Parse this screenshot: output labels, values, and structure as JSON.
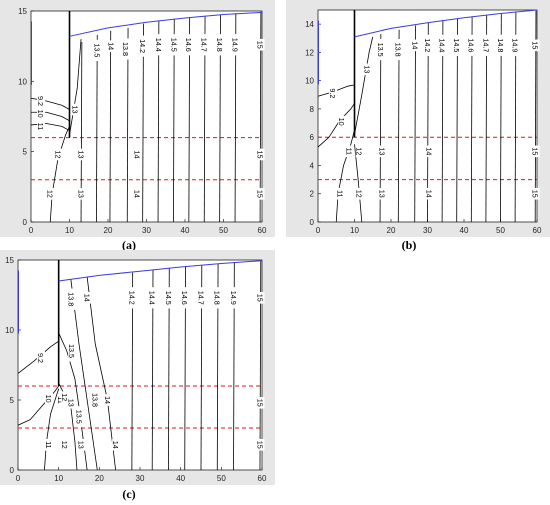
{
  "panel_labels": {
    "a": "(a)",
    "b": "(b)",
    "c": "(c)"
  },
  "colors": {
    "contour": "#000000",
    "surface": "#3b3bdf",
    "dashed": "#e01818",
    "background": "#e6e6e6",
    "plot": "#ffffff"
  },
  "chart_data": [
    {
      "type": "contour",
      "panel": "a",
      "xlim": [
        0,
        60
      ],
      "ylim": [
        0,
        15
      ],
      "xticks": [
        0,
        10,
        20,
        30,
        40,
        50,
        60
      ],
      "yticks": [
        0,
        5,
        10,
        15
      ],
      "wall_x": 10,
      "dashed_y": [
        6,
        3
      ],
      "surface": {
        "x": [
          10,
          20,
          30,
          40,
          50,
          60
        ],
        "y": [
          13.2,
          13.8,
          14.2,
          14.5,
          14.75,
          14.9
        ]
      },
      "contours": [
        {
          "label": "13.5",
          "x": 17,
          "y": [
            0,
            13.3
          ]
        },
        {
          "label": "13.8",
          "x": 25,
          "y": [
            0,
            13.8
          ]
        },
        {
          "label": "14",
          "x": 20.5,
          "y": [
            0,
            13.6
          ]
        },
        {
          "label": "14.2",
          "x": 29,
          "y": [
            0,
            14.1
          ]
        },
        {
          "label": "14.4",
          "x": 33,
          "y": [
            0,
            14.3
          ]
        },
        {
          "label": "14.5",
          "x": 37,
          "y": [
            0,
            14.45
          ]
        },
        {
          "label": "14.6",
          "x": 41,
          "y": [
            0,
            14.55
          ]
        },
        {
          "label": "14.7",
          "x": 45,
          "y": [
            0,
            14.65
          ]
        },
        {
          "label": "14.8",
          "x": 49,
          "y": [
            0,
            14.75
          ]
        },
        {
          "label": "14.9",
          "x": 53,
          "y": [
            0,
            14.85
          ]
        },
        {
          "label": "15",
          "x": 59.5,
          "y": [
            0,
            14.95
          ]
        },
        {
          "label": "13",
          "x": 13,
          "y": [
            0,
            12.8
          ]
        }
      ],
      "left_contours": [
        {
          "label": "9.2",
          "points": [
            [
              0,
              8.8
            ],
            [
              4,
              8.6
            ],
            [
              8,
              8.3
            ],
            [
              10,
              8.0
            ]
          ]
        },
        {
          "label": "10",
          "points": [
            [
              0,
              7.8
            ],
            [
              4,
              7.8
            ],
            [
              8,
              7.5
            ],
            [
              10,
              7.2
            ]
          ]
        },
        {
          "label": "11",
          "points": [
            [
              0,
              6.9
            ],
            [
              4,
              7.0
            ],
            [
              8,
              6.8
            ],
            [
              10,
              6.5
            ]
          ]
        },
        {
          "label": "12",
          "points": [
            [
              5,
              0
            ],
            [
              5.5,
              2
            ],
            [
              7,
              4.5
            ],
            [
              9,
              6.2
            ],
            [
              10,
              6.8
            ]
          ]
        },
        {
          "label": "13",
          "points": [
            [
              10,
              6.2
            ],
            [
              12,
              9.5
            ],
            [
              13,
              13.0
            ]
          ]
        }
      ],
      "value_labels": [
        {
          "text": "13.5",
          "x": 17.2,
          "y": 12.2
        },
        {
          "text": "13.8",
          "x": 24.6,
          "y": 12.3
        },
        {
          "text": "14",
          "x": 20.8,
          "y": 12.5
        },
        {
          "text": "14.2",
          "x": 29,
          "y": 12.5
        },
        {
          "text": "14.4",
          "x": 33.2,
          "y": 12.6
        },
        {
          "text": "14.5",
          "x": 37.2,
          "y": 12.6
        },
        {
          "text": "14.6",
          "x": 41,
          "y": 12.6
        },
        {
          "text": "14.7",
          "x": 45,
          "y": 12.6
        },
        {
          "text": "14.8",
          "x": 49,
          "y": 12.6
        },
        {
          "text": "14.9",
          "x": 53,
          "y": 12.6
        },
        {
          "text": "15",
          "x": 59.5,
          "y": 12.6
        },
        {
          "text": "9.2",
          "x": 2.5,
          "y": 8.6
        },
        {
          "text": "10",
          "x": 2.5,
          "y": 7.7
        },
        {
          "text": "11",
          "x": 2.5,
          "y": 6.8
        },
        {
          "text": "13",
          "x": 11.5,
          "y": 8.0
        },
        {
          "text": "12",
          "x": 7,
          "y": 4.8
        },
        {
          "text": "13",
          "x": 13,
          "y": 4.8
        },
        {
          "text": "14",
          "x": 27.5,
          "y": 4.8
        },
        {
          "text": "15",
          "x": 59.5,
          "y": 4.8
        },
        {
          "text": "12",
          "x": 5,
          "y": 2.0
        },
        {
          "text": "13",
          "x": 13,
          "y": 2.0
        },
        {
          "text": "14",
          "x": 27.5,
          "y": 2.0
        },
        {
          "text": "15",
          "x": 59.5,
          "y": 2.0
        }
      ]
    },
    {
      "type": "contour",
      "panel": "b",
      "xlim": [
        0,
        60
      ],
      "ylim": [
        0,
        15
      ],
      "xticks": [
        0,
        10,
        20,
        30,
        40,
        50,
        60
      ],
      "yticks": [
        0,
        2,
        4,
        6,
        8,
        10,
        12,
        14
      ],
      "wall_x": 10,
      "dashed_y": [
        6,
        3
      ],
      "surface": {
        "x": [
          10,
          20,
          30,
          40,
          50,
          60
        ],
        "y": [
          13.1,
          13.7,
          14.1,
          14.45,
          14.75,
          15.0
        ]
      },
      "contours": [
        {
          "label": "13.5",
          "x": 17,
          "y": [
            0,
            13.3
          ]
        },
        {
          "label": "13.8",
          "x": 22,
          "y": [
            0,
            13.6
          ]
        },
        {
          "label": "14",
          "x": 26.5,
          "y": [
            0,
            13.9
          ]
        },
        {
          "label": "14.2",
          "x": 30,
          "y": [
            0,
            14.1
          ]
        },
        {
          "label": "14.4",
          "x": 34,
          "y": [
            0,
            14.3
          ]
        },
        {
          "label": "14.5",
          "x": 38,
          "y": [
            0,
            14.4
          ]
        },
        {
          "label": "14.6",
          "x": 42,
          "y": [
            0,
            14.55
          ]
        },
        {
          "label": "14.7",
          "x": 46,
          "y": [
            0,
            14.65
          ]
        },
        {
          "label": "14.8",
          "x": 50,
          "y": [
            0,
            14.75
          ]
        },
        {
          "label": "14.9",
          "x": 54,
          "y": [
            0,
            14.85
          ]
        },
        {
          "label": "15",
          "x": 59.5,
          "y": [
            0,
            14.95
          ]
        }
      ],
      "left_contours": [
        {
          "label": "9.2",
          "points": [
            [
              0,
              8.9
            ],
            [
              4,
              9.2
            ],
            [
              8,
              9.6
            ],
            [
              10,
              9.7
            ]
          ]
        },
        {
          "label": "10",
          "points": [
            [
              0,
              5.3
            ],
            [
              3,
              6.0
            ],
            [
              6,
              7.2
            ],
            [
              9,
              8.0
            ],
            [
              10,
              8.4
            ]
          ]
        },
        {
          "label": "11",
          "points": [
            [
              5,
              0
            ],
            [
              5.5,
              2.0
            ],
            [
              7,
              4.0
            ],
            [
              9,
              5.5
            ],
            [
              10,
              6.5
            ]
          ]
        },
        {
          "label": "12",
          "points": [
            [
              10,
              5.5
            ],
            [
              11,
              3.0
            ],
            [
              12,
              0
            ]
          ]
        },
        {
          "label": "13",
          "points": [
            [
              10,
              6.2
            ],
            [
              12,
              9.0
            ],
            [
              14,
              12.0
            ],
            [
              15,
              13.1
            ]
          ]
        }
      ],
      "value_labels": [
        {
          "text": "13.5",
          "x": 17.2,
          "y": 12.2
        },
        {
          "text": "13.8",
          "x": 22,
          "y": 12.2
        },
        {
          "text": "14",
          "x": 26.6,
          "y": 12.5
        },
        {
          "text": "14.2",
          "x": 30,
          "y": 12.5
        },
        {
          "text": "14.4",
          "x": 34,
          "y": 12.5
        },
        {
          "text": "14.5",
          "x": 38,
          "y": 12.5
        },
        {
          "text": "14.6",
          "x": 42,
          "y": 12.5
        },
        {
          "text": "14.7",
          "x": 46,
          "y": 12.5
        },
        {
          "text": "14.8",
          "x": 50,
          "y": 12.5
        },
        {
          "text": "14.9",
          "x": 54,
          "y": 12.5
        },
        {
          "text": "15",
          "x": 59.5,
          "y": 12.5
        },
        {
          "text": "13",
          "x": 13.5,
          "y": 10.8
        },
        {
          "text": "9.2",
          "x": 4,
          "y": 9.1
        },
        {
          "text": "10",
          "x": 6.5,
          "y": 7.1
        },
        {
          "text": "11",
          "x": 8.5,
          "y": 5.0
        },
        {
          "text": "12",
          "x": 11.3,
          "y": 5.0
        },
        {
          "text": "13",
          "x": 17.5,
          "y": 5.0
        },
        {
          "text": "14",
          "x": 30.5,
          "y": 5.0
        },
        {
          "text": "15",
          "x": 59.5,
          "y": 5.0
        },
        {
          "text": "11",
          "x": 6,
          "y": 2.0
        },
        {
          "text": "12",
          "x": 11.3,
          "y": 2.0
        },
        {
          "text": "13",
          "x": 17.5,
          "y": 2.0
        },
        {
          "text": "14",
          "x": 30.5,
          "y": 2.0
        },
        {
          "text": "15",
          "x": 59.5,
          "y": 2.0
        }
      ]
    },
    {
      "type": "contour",
      "panel": "c",
      "xlim": [
        0,
        60
      ],
      "ylim": [
        0,
        15
      ],
      "xticks": [
        0,
        10,
        20,
        30,
        40,
        50,
        60
      ],
      "yticks": [
        0,
        5,
        10,
        15
      ],
      "wall_x": 10,
      "dashed_y": [
        6,
        3
      ],
      "surface": {
        "x": [
          10,
          20,
          30,
          40,
          50,
          60
        ],
        "y": [
          13.5,
          13.9,
          14.2,
          14.5,
          14.75,
          14.95
        ]
      },
      "contours": [
        {
          "label": "14.2",
          "x": 28,
          "y": [
            0,
            14.1
          ]
        },
        {
          "label": "14.4",
          "x": 33,
          "y": [
            0,
            14.3
          ]
        },
        {
          "label": "14.5",
          "x": 37,
          "y": [
            0,
            14.45
          ]
        },
        {
          "label": "14.6",
          "x": 41,
          "y": [
            0,
            14.55
          ]
        },
        {
          "label": "14.7",
          "x": 45,
          "y": [
            0,
            14.65
          ]
        },
        {
          "label": "14.8",
          "x": 49,
          "y": [
            0,
            14.75
          ]
        },
        {
          "label": "14.9",
          "x": 53,
          "y": [
            0,
            14.85
          ]
        },
        {
          "label": "15",
          "x": 59.5,
          "y": [
            0,
            14.95
          ]
        }
      ],
      "left_contours": [
        {
          "label": "9.2",
          "points": [
            [
              0,
              6.9
            ],
            [
              4,
              7.8
            ],
            [
              8,
              8.8
            ],
            [
              10,
              9.2
            ]
          ]
        },
        {
          "label": "10",
          "points": [
            [
              0,
              3.2
            ],
            [
              3,
              3.6
            ],
            [
              6,
              4.6
            ],
            [
              9,
              5.6
            ],
            [
              10,
              6.0
            ]
          ]
        },
        {
          "label": "11",
          "points": [
            [
              6.5,
              0
            ],
            [
              7,
              2.0
            ],
            [
              8,
              4.0
            ],
            [
              10,
              5.8
            ]
          ]
        },
        {
          "label": "13.5",
          "points": [
            [
              10,
              9.8
            ],
            [
              12,
              8.5
            ],
            [
              14,
              6.5
            ],
            [
              15,
              4.5
            ],
            [
              17,
              0
            ]
          ]
        },
        {
          "label": "13",
          "points": [
            [
              10,
              6.2
            ],
            [
              13,
              4.5
            ],
            [
              14,
              2
            ],
            [
              14.5,
              0
            ]
          ]
        },
        {
          "label": "13.8",
          "points": [
            [
              13,
              13.6
            ],
            [
              15,
              9
            ],
            [
              17,
              5
            ],
            [
              19.5,
              0
            ]
          ]
        },
        {
          "label": "14",
          "points": [
            [
              17,
              13.8
            ],
            [
              19,
              9
            ],
            [
              22,
              5
            ],
            [
              24,
              0
            ]
          ]
        }
      ],
      "value_labels": [
        {
          "text": "13.8",
          "x": 13,
          "y": 12.2
        },
        {
          "text": "14",
          "x": 17,
          "y": 12.3
        },
        {
          "text": "14.2",
          "x": 28,
          "y": 12.3
        },
        {
          "text": "14.4",
          "x": 33,
          "y": 12.3
        },
        {
          "text": "14.5",
          "x": 37,
          "y": 12.3
        },
        {
          "text": "14.6",
          "x": 41,
          "y": 12.3
        },
        {
          "text": "14.7",
          "x": 45,
          "y": 12.3
        },
        {
          "text": "14.8",
          "x": 49,
          "y": 12.3
        },
        {
          "text": "14.9",
          "x": 53,
          "y": 12.3
        },
        {
          "text": "15",
          "x": 59.5,
          "y": 12.3
        },
        {
          "text": "13.5",
          "x": 13.2,
          "y": 8.5
        },
        {
          "text": "9.2",
          "x": 5.5,
          "y": 8.0
        },
        {
          "text": "10",
          "x": 7.5,
          "y": 5.1
        },
        {
          "text": "11",
          "x": 10.5,
          "y": 5.0
        },
        {
          "text": "12",
          "x": 11.5,
          "y": 5.2
        },
        {
          "text": "13",
          "x": 13,
          "y": 4.8
        },
        {
          "text": "13.8",
          "x": 19,
          "y": 5.0
        },
        {
          "text": "13.5",
          "x": 15,
          "y": 3.8
        },
        {
          "text": "14",
          "x": 22,
          "y": 5.0
        },
        {
          "text": "15",
          "x": 59.5,
          "y": 4.8
        },
        {
          "text": "11",
          "x": 7.5,
          "y": 1.8
        },
        {
          "text": "12",
          "x": 11.5,
          "y": 1.8
        },
        {
          "text": "13",
          "x": 15.5,
          "y": 1.8
        },
        {
          "text": "14",
          "x": 24,
          "y": 1.8
        },
        {
          "text": "15",
          "x": 59.5,
          "y": 1.8
        }
      ]
    }
  ]
}
